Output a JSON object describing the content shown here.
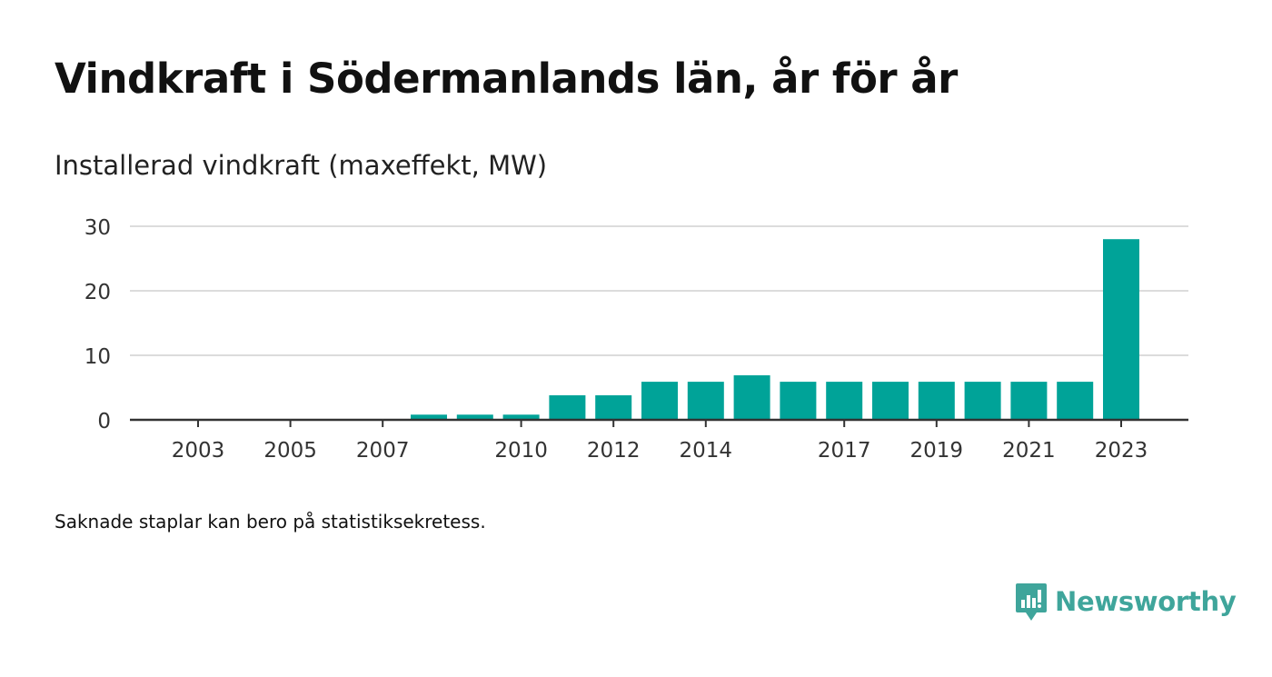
{
  "title": "Vindkraft i Södermanlands län, år för år",
  "subtitle": "Installerad vindkraft (maxeffekt, MW)",
  "note": "Saknade staplar kan bero på statistiksekretess.",
  "brand": {
    "name": "Newsworthy",
    "color": "#3fa59b"
  },
  "chart_data": {
    "type": "bar",
    "categories": [
      "2003",
      "2004",
      "2005",
      "2006",
      "2007",
      "2008",
      "2009",
      "2010",
      "2011",
      "2012",
      "2013",
      "2014",
      "2015",
      "2016",
      "2017",
      "2018",
      "2019",
      "2020",
      "2021",
      "2022",
      "2023"
    ],
    "values": [
      null,
      null,
      null,
      null,
      null,
      0.8,
      0.8,
      0.8,
      3.8,
      3.8,
      5.9,
      5.9,
      6.9,
      5.9,
      5.9,
      5.9,
      5.9,
      5.9,
      5.9,
      5.9,
      28
    ],
    "x_tick_labels": [
      "2003",
      "2005",
      "2007",
      "2010",
      "2012",
      "2014",
      "2017",
      "2019",
      "2021",
      "2023"
    ],
    "y_ticks": [
      0,
      10,
      20,
      30
    ],
    "ylim": [
      0,
      30
    ],
    "grid": true,
    "bar_color": "#00a398"
  }
}
